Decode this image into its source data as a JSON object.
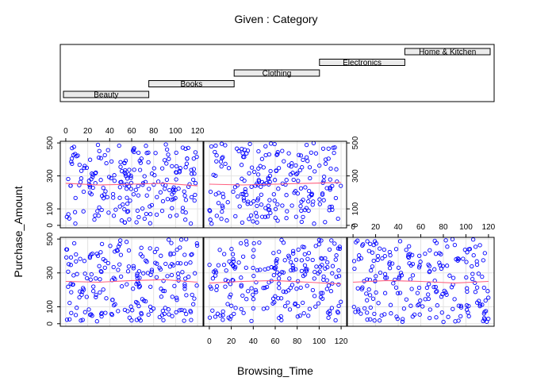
{
  "chart_data": {
    "type": "scatter",
    "title": "Given : Category",
    "xlabel": "Browsing_Time",
    "ylabel": "Purchase_Amount",
    "xlim": [
      -5,
      125
    ],
    "ylim": [
      -15,
      510
    ],
    "x_ticks": [
      0,
      20,
      40,
      60,
      80,
      100,
      120
    ],
    "y_ticks": [
      0,
      100,
      300,
      500
    ],
    "categories": [
      "Beauty",
      "Books",
      "Clothing",
      "Electronics",
      "Home & Kitchen"
    ],
    "given_intervals": [
      {
        "category": "Beauty",
        "level": 1
      },
      {
        "category": "Books",
        "level": 2
      },
      {
        "category": "Clothing",
        "level": 3
      },
      {
        "category": "Electronics",
        "level": 4
      },
      {
        "category": "Home & Kitchen",
        "level": 5
      }
    ],
    "panel_layout": "3 columns x 2 rows, panels filled bottom-left to top",
    "point_style": {
      "color": "#0000ff",
      "shape": "open circle"
    },
    "smooth_color": "#ff6080",
    "grid": true,
    "series": [
      {
        "category": "Beauty",
        "n": 220,
        "x_range": [
          0,
          120
        ],
        "y_range": [
          10,
          500
        ],
        "smooth": [
          [
            0,
            250
          ],
          [
            30,
            245
          ],
          [
            60,
            255
          ],
          [
            90,
            260
          ],
          [
            120,
            245
          ]
        ]
      },
      {
        "category": "Books",
        "n": 220,
        "x_range": [
          0,
          120
        ],
        "y_range": [
          10,
          500
        ],
        "smooth": [
          [
            0,
            240
          ],
          [
            30,
            250
          ],
          [
            60,
            255
          ],
          [
            90,
            245
          ],
          [
            120,
            235
          ]
        ]
      },
      {
        "category": "Clothing",
        "n": 220,
        "x_range": [
          0,
          120
        ],
        "y_range": [
          10,
          500
        ],
        "smooth": [
          [
            0,
            245
          ],
          [
            30,
            255
          ],
          [
            60,
            250
          ],
          [
            90,
            240
          ],
          [
            120,
            250
          ]
        ]
      },
      {
        "category": "Electronics",
        "n": 220,
        "x_range": [
          0,
          120
        ],
        "y_range": [
          10,
          500
        ],
        "smooth": [
          [
            0,
            255
          ],
          [
            30,
            245
          ],
          [
            60,
            250
          ],
          [
            90,
            255
          ],
          [
            120,
            240
          ]
        ]
      },
      {
        "category": "Home & Kitchen",
        "n": 220,
        "x_range": [
          0,
          120
        ],
        "y_range": [
          10,
          500
        ],
        "smooth": [
          [
            0,
            250
          ],
          [
            30,
            245
          ],
          [
            60,
            250
          ],
          [
            90,
            255
          ],
          [
            120,
            260
          ]
        ]
      }
    ]
  }
}
